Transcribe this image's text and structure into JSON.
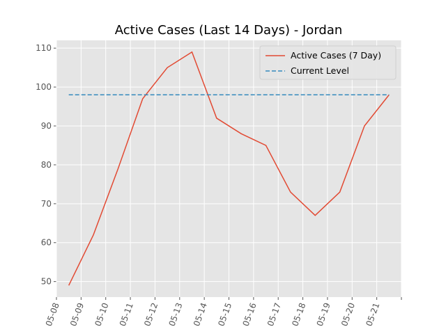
{
  "chart_data": {
    "type": "line",
    "title": "Active Cases (Last 14 Days) - Jordan",
    "categories": [
      "05-08",
      "05-09",
      "05-10",
      "05-11",
      "05-12",
      "05-13",
      "05-14",
      "05-15",
      "05-16",
      "05-17",
      "05-18",
      "05-19",
      "05-20",
      "05-21"
    ],
    "series": [
      {
        "name": "Active Cases (7 Day)",
        "color": "#E24A33",
        "dash": false,
        "values": [
          49,
          62,
          79,
          97,
          105,
          109,
          92,
          88,
          85,
          73,
          67,
          73,
          90,
          98
        ]
      },
      {
        "name": "Current Level",
        "color": "#348ABD",
        "dash": true,
        "values": [
          98,
          98,
          98,
          98,
          98,
          98,
          98,
          98,
          98,
          98,
          98,
          98,
          98,
          98
        ]
      }
    ],
    "ylim": [
      46,
      112
    ],
    "yticks": [
      50,
      60,
      70,
      80,
      90,
      100,
      110
    ],
    "grid": true,
    "legend": "upper right"
  }
}
